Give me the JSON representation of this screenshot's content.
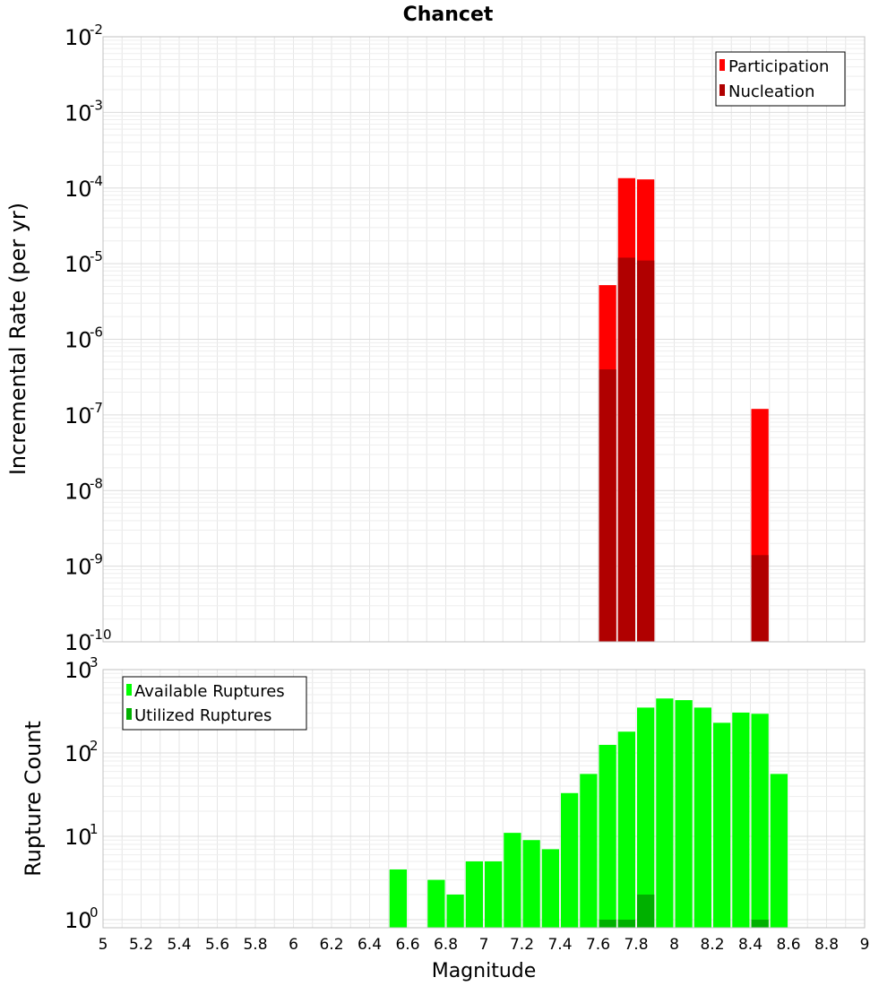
{
  "title": "Chancet",
  "xlabel": "Magnitude",
  "colors": {
    "participation": "#ff0000",
    "nucleation": "#b00000",
    "available": "#00ff00",
    "utilized": "#00b000",
    "grid": "#e6e6e6",
    "frame": "#c0c0c0"
  },
  "chart_data": [
    {
      "type": "bar",
      "panel": "top",
      "ylabel": "Incremental Rate (per yr)",
      "yscale": "log",
      "ylim": [
        1e-10,
        0.01
      ],
      "xlim": [
        5,
        9
      ],
      "bar_width": 0.1,
      "ytick_exponents": [
        "-10",
        "-9",
        "-8",
        "-7",
        "-6",
        "-5",
        "-4",
        "-3",
        "-2"
      ],
      "legend": {
        "placement": "top-right",
        "entries": [
          "Participation",
          "Nucleation"
        ]
      },
      "series": [
        {
          "name": "Participation",
          "points": [
            {
              "x": 7.65,
              "y": 5.2e-06
            },
            {
              "x": 7.75,
              "y": 0.000135
            },
            {
              "x": 7.85,
              "y": 0.00013
            },
            {
              "x": 8.45,
              "y": 1.2e-07
            }
          ]
        },
        {
          "name": "Nucleation",
          "points": [
            {
              "x": 7.65,
              "y": 4e-07
            },
            {
              "x": 7.75,
              "y": 1.2e-05
            },
            {
              "x": 7.85,
              "y": 1.1e-05
            },
            {
              "x": 8.45,
              "y": 1.4e-09
            }
          ]
        }
      ]
    },
    {
      "type": "bar",
      "panel": "bottom",
      "ylabel": "Rupture Count",
      "yscale": "log",
      "ylim": [
        0.8,
        1000
      ],
      "xlim": [
        5,
        9
      ],
      "bar_width": 0.1,
      "ytick_exponents": [
        "0",
        "1",
        "2",
        "3"
      ],
      "legend": {
        "placement": "top-left",
        "entries": [
          "Available Ruptures",
          "Utilized Ruptures"
        ]
      },
      "series": [
        {
          "name": "Available Ruptures",
          "points": [
            {
              "x": 6.55,
              "y": 4
            },
            {
              "x": 6.75,
              "y": 3
            },
            {
              "x": 6.85,
              "y": 2
            },
            {
              "x": 6.95,
              "y": 5
            },
            {
              "x": 7.05,
              "y": 5
            },
            {
              "x": 7.15,
              "y": 11
            },
            {
              "x": 7.25,
              "y": 9
            },
            {
              "x": 7.35,
              "y": 7
            },
            {
              "x": 7.45,
              "y": 33
            },
            {
              "x": 7.55,
              "y": 56
            },
            {
              "x": 7.65,
              "y": 125
            },
            {
              "x": 7.75,
              "y": 180
            },
            {
              "x": 7.85,
              "y": 350
            },
            {
              "x": 7.95,
              "y": 450
            },
            {
              "x": 8.05,
              "y": 430
            },
            {
              "x": 8.15,
              "y": 350
            },
            {
              "x": 8.25,
              "y": 230
            },
            {
              "x": 8.35,
              "y": 305
            },
            {
              "x": 8.45,
              "y": 295
            },
            {
              "x": 8.55,
              "y": 56
            }
          ]
        },
        {
          "name": "Utilized Ruptures",
          "points": [
            {
              "x": 7.65,
              "y": 1
            },
            {
              "x": 7.75,
              "y": 1
            },
            {
              "x": 7.85,
              "y": 2
            },
            {
              "x": 8.45,
              "y": 1
            }
          ]
        }
      ]
    }
  ],
  "xticks": [
    "5",
    "5.2",
    "5.4",
    "5.6",
    "5.8",
    "6",
    "6.2",
    "6.4",
    "6.6",
    "6.8",
    "7",
    "7.2",
    "7.4",
    "7.6",
    "7.8",
    "8",
    "8.2",
    "8.4",
    "8.6",
    "8.8",
    "9"
  ]
}
